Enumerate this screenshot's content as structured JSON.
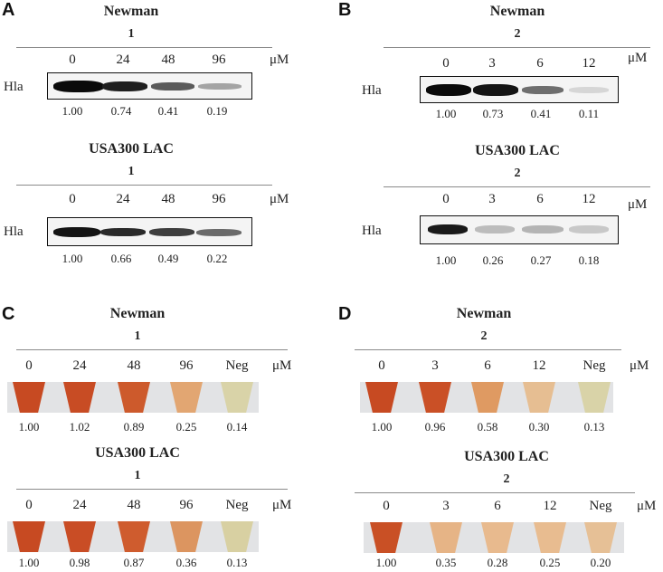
{
  "panels": [
    {
      "letter": "A",
      "type": "blot",
      "blocks": [
        {
          "strain": "Newman",
          "compound": "1",
          "row_label": "Hla",
          "unit": "μM",
          "concentrations": [
            "0",
            "24",
            "48",
            "96"
          ],
          "values": [
            "1.00",
            "0.74",
            "0.41",
            "0.19"
          ]
        },
        {
          "strain": "USA300 LAC",
          "compound": "1",
          "row_label": "Hla",
          "unit": "μM",
          "concentrations": [
            "0",
            "24",
            "48",
            "96"
          ],
          "values": [
            "1.00",
            "0.66",
            "0.49",
            "0.22"
          ]
        }
      ]
    },
    {
      "letter": "B",
      "type": "blot",
      "blocks": [
        {
          "strain": "Newman",
          "compound": "2",
          "row_label": "Hla",
          "unit": "μM",
          "concentrations": [
            "0",
            "3",
            "6",
            "12"
          ],
          "values": [
            "1.00",
            "0.73",
            "0.41",
            "0.11"
          ]
        },
        {
          "strain": "USA300 LAC",
          "compound": "2",
          "row_label": "Hla",
          "unit": "μM",
          "concentrations": [
            "0",
            "3",
            "6",
            "12"
          ],
          "values": [
            "1.00",
            "0.26",
            "0.27",
            "0.18"
          ]
        }
      ]
    },
    {
      "letter": "C",
      "type": "hemolysis",
      "blocks": [
        {
          "strain": "Newman",
          "compound": "1",
          "unit": "μM",
          "concentrations": [
            "0",
            "24",
            "48",
            "96",
            "Neg"
          ],
          "values": [
            "1.00",
            "1.02",
            "0.89",
            "0.25",
            "0.14"
          ]
        },
        {
          "strain": "USA300 LAC",
          "compound": "1",
          "unit": "μM",
          "concentrations": [
            "0",
            "24",
            "48",
            "96",
            "Neg"
          ],
          "values": [
            "1.00",
            "0.98",
            "0.87",
            "0.36",
            "0.13"
          ]
        }
      ]
    },
    {
      "letter": "D",
      "type": "hemolysis",
      "blocks": [
        {
          "strain": "Newman",
          "compound": "2",
          "unit": "μM",
          "concentrations": [
            "0",
            "3",
            "6",
            "12",
            "Neg"
          ],
          "values": [
            "1.00",
            "0.96",
            "0.58",
            "0.30",
            "0.13"
          ]
        },
        {
          "strain": "USA300 LAC",
          "compound": "2",
          "unit": "μM",
          "concentrations": [
            "0",
            "3",
            "6",
            "12",
            "Neg"
          ],
          "values": [
            "1.00",
            "0.35",
            "0.28",
            "0.25",
            "0.20"
          ]
        }
      ]
    }
  ],
  "colors": {
    "band": "#0c0c0c",
    "lysed": "#c74a22",
    "partial": "#dc8a4e",
    "weak": "#e6b486",
    "neg": "#d9d3a8"
  }
}
